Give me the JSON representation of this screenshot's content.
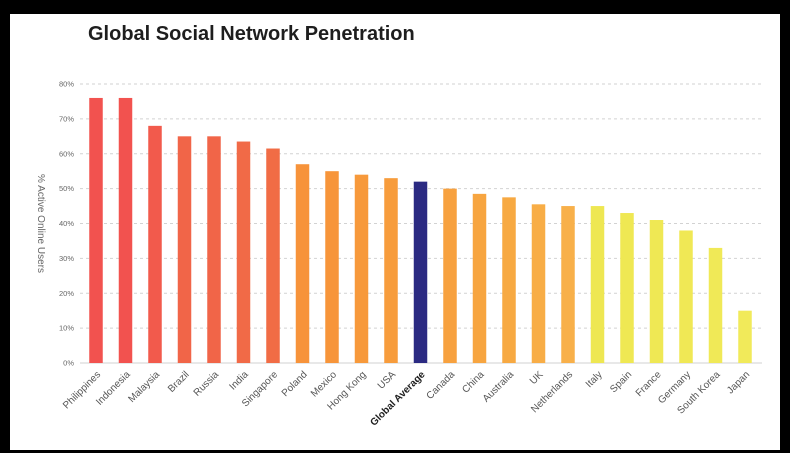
{
  "chart_data": {
    "type": "bar",
    "title": "Global Social Network Penetration",
    "ylabel": "% Active Online Users",
    "xlabel": "",
    "ylim": [
      0,
      80
    ],
    "yticks": [
      "0%",
      "10%",
      "20%",
      "30%",
      "40%",
      "50%",
      "60%",
      "70%",
      "80%"
    ],
    "grid": true,
    "categories": [
      "Philippines",
      "Indonesia",
      "Malaysia",
      "Brazil",
      "Russia",
      "India",
      "Singapore",
      "Poland",
      "Mexico",
      "Hong Kong",
      "USA",
      "Global Average",
      "Canada",
      "China",
      "Australia",
      "UK",
      "Netherlands",
      "Italy",
      "Spain",
      "France",
      "Germany",
      "South Korea",
      "Japan"
    ],
    "values": [
      76,
      76,
      68,
      65,
      65,
      63.5,
      61.5,
      57,
      55,
      54,
      53,
      52,
      50,
      48.5,
      47.5,
      45.5,
      45,
      45,
      43,
      41,
      38,
      33,
      15
    ],
    "highlight_category": "Global Average",
    "colors": [
      "#f2524f",
      "#f2524f",
      "#f25a4c",
      "#f16548",
      "#f16548",
      "#f16a47",
      "#f16c45",
      "#f7933a",
      "#f7953a",
      "#f7993b",
      "#f79c3c",
      "#2b2a82",
      "#f7a13f",
      "#f7a540",
      "#f7a942",
      "#f8ad46",
      "#f8b04a",
      "#eee752",
      "#efe853",
      "#efe854",
      "#f0e855",
      "#f0e957",
      "#f1ea5a"
    ]
  }
}
